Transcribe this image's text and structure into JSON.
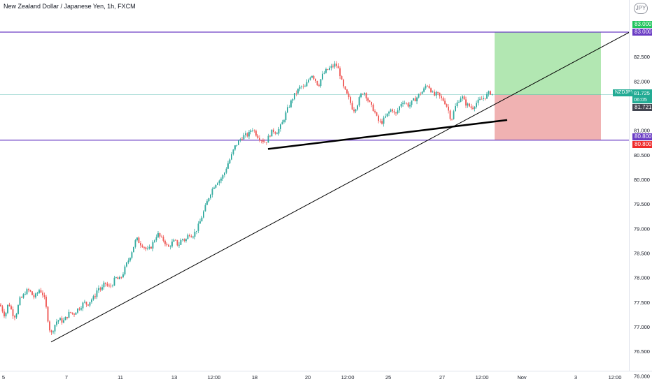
{
  "header": {
    "title": "New Zealand Dollar / Japanese Yen, 1h, FXCM",
    "currency": "JPY"
  },
  "badges": {
    "target_price": "83.000",
    "upper_line_price": "83.000",
    "stop_price": "80.800",
    "lower_line_price": "80.800",
    "symbol": "NZDJPY",
    "last_price": "81.725",
    "countdown": "06:05",
    "close_price": "81.721"
  },
  "colors": {
    "up": "#26a69a",
    "down": "#ef5350",
    "profit_zone": "#a5e3a5",
    "loss_zone": "#eeaaaa",
    "horizontal_line": "#6a3cc4",
    "trend_line": "#000000"
  },
  "chart_data": {
    "type": "candlestick",
    "instrument": "NZDJPY",
    "timeframe": "1h",
    "source": "FXCM",
    "ylim": [
      75.9,
      83.55
    ],
    "y_ticks": [
      "83.000",
      "82.500",
      "82.000",
      "81.500",
      "81.000",
      "80.500",
      "80.000",
      "79.500",
      "79.000",
      "78.500",
      "78.000",
      "77.500",
      "77.000",
      "76.500",
      "76.000"
    ],
    "x_ticks": [
      "5",
      "7",
      "11",
      "13",
      "12:00",
      "18",
      "20",
      "12:00",
      "25",
      "27",
      "12:00",
      "Nov",
      "3",
      "12:00"
    ],
    "price_path": [
      [
        0,
        77.45
      ],
      [
        3,
        77.35
      ],
      [
        6,
        77.25
      ],
      [
        9,
        77.3
      ],
      [
        12,
        77.5
      ],
      [
        16,
        77.35
      ],
      [
        20,
        77.2
      ],
      [
        24,
        77.3
      ],
      [
        28,
        77.55
      ],
      [
        32,
        77.6
      ],
      [
        36,
        77.7
      ],
      [
        40,
        77.75
      ],
      [
        44,
        77.7
      ],
      [
        48,
        77.6
      ],
      [
        52,
        77.65
      ],
      [
        56,
        77.75
      ],
      [
        60,
        77.7
      ],
      [
        64,
        77.55
      ],
      [
        67,
        77.3
      ],
      [
        70,
        77.0
      ],
      [
        73,
        76.85
      ],
      [
        76,
        76.95
      ],
      [
        80,
        77.1
      ],
      [
        85,
        77.15
      ],
      [
        90,
        77.1
      ],
      [
        95,
        77.2
      ],
      [
        100,
        77.3
      ],
      [
        105,
        77.25
      ],
      [
        110,
        77.35
      ],
      [
        115,
        77.4
      ],
      [
        120,
        77.5
      ],
      [
        125,
        77.45
      ],
      [
        130,
        77.55
      ],
      [
        135,
        77.6
      ],
      [
        140,
        77.8
      ],
      [
        145,
        77.75
      ],
      [
        150,
        77.9
      ],
      [
        155,
        77.8
      ],
      [
        160,
        77.85
      ],
      [
        165,
        78.0
      ],
      [
        170,
        77.95
      ],
      [
        175,
        78.05
      ],
      [
        180,
        78.25
      ],
      [
        185,
        78.4
      ],
      [
        190,
        78.6
      ],
      [
        195,
        78.8
      ],
      [
        200,
        78.7
      ],
      [
        205,
        78.65
      ],
      [
        210,
        78.55
      ],
      [
        215,
        78.6
      ],
      [
        220,
        78.75
      ],
      [
        225,
        78.9
      ],
      [
        230,
        78.8
      ],
      [
        235,
        78.75
      ],
      [
        240,
        78.6
      ],
      [
        245,
        78.7
      ],
      [
        250,
        78.75
      ],
      [
        255,
        78.65
      ],
      [
        260,
        78.8
      ],
      [
        265,
        78.75
      ],
      [
        270,
        78.9
      ],
      [
        275,
        78.85
      ],
      [
        280,
        78.95
      ],
      [
        285,
        79.1
      ],
      [
        290,
        79.3
      ],
      [
        295,
        79.5
      ],
      [
        300,
        79.7
      ],
      [
        305,
        79.85
      ],
      [
        310,
        79.95
      ],
      [
        315,
        80.0
      ],
      [
        320,
        80.1
      ],
      [
        325,
        80.3
      ],
      [
        330,
        80.45
      ],
      [
        335,
        80.65
      ],
      [
        340,
        80.75
      ],
      [
        345,
        80.85
      ],
      [
        350,
        80.9
      ],
      [
        355,
        80.9
      ],
      [
        360,
        81.05
      ],
      [
        365,
        80.95
      ],
      [
        370,
        80.85
      ],
      [
        375,
        80.8
      ],
      [
        380,
        80.75
      ],
      [
        385,
        80.9
      ],
      [
        390,
        81.0
      ],
      [
        395,
        80.95
      ],
      [
        400,
        81.05
      ],
      [
        405,
        81.2
      ],
      [
        410,
        81.4
      ],
      [
        415,
        81.55
      ],
      [
        420,
        81.7
      ],
      [
        425,
        81.8
      ],
      [
        430,
        81.9
      ],
      [
        435,
        81.85
      ],
      [
        440,
        82.0
      ],
      [
        445,
        82.15
      ],
      [
        450,
        82.05
      ],
      [
        455,
        81.9
      ],
      [
        460,
        82.1
      ],
      [
        465,
        82.2
      ],
      [
        470,
        82.25
      ],
      [
        475,
        82.3
      ],
      [
        480,
        82.35
      ],
      [
        485,
        82.2
      ],
      [
        490,
        81.9
      ],
      [
        495,
        81.75
      ],
      [
        500,
        81.6
      ],
      [
        505,
        81.4
      ],
      [
        510,
        81.5
      ],
      [
        515,
        81.7
      ],
      [
        520,
        81.8
      ],
      [
        525,
        81.65
      ],
      [
        530,
        81.5
      ],
      [
        535,
        81.4
      ],
      [
        540,
        81.2
      ],
      [
        545,
        81.15
      ],
      [
        550,
        81.25
      ],
      [
        555,
        81.35
      ],
      [
        560,
        81.45
      ],
      [
        565,
        81.3
      ],
      [
        570,
        81.45
      ],
      [
        575,
        81.6
      ],
      [
        580,
        81.55
      ],
      [
        585,
        81.5
      ],
      [
        590,
        81.6
      ],
      [
        595,
        81.65
      ],
      [
        600,
        81.75
      ],
      [
        605,
        81.8
      ],
      [
        610,
        81.95
      ],
      [
        615,
        81.85
      ],
      [
        620,
        81.7
      ],
      [
        625,
        81.75
      ],
      [
        630,
        81.65
      ],
      [
        635,
        81.6
      ],
      [
        640,
        81.45
      ],
      [
        645,
        81.2
      ],
      [
        650,
        81.45
      ],
      [
        655,
        81.6
      ],
      [
        660,
        81.7
      ],
      [
        665,
        81.55
      ],
      [
        670,
        81.5
      ],
      [
        675,
        81.45
      ],
      [
        680,
        81.55
      ],
      [
        685,
        81.6
      ],
      [
        690,
        81.65
      ],
      [
        695,
        81.7
      ],
      [
        700,
        81.78
      ],
      [
        705,
        81.72
      ]
    ],
    "horizontal_levels": [
      83.0,
      80.8
    ],
    "last_price": 81.725,
    "position": {
      "type": "long",
      "entry": 81.725,
      "target": 83.0,
      "stop": 80.8
    },
    "trend_lines": [
      {
        "from": [
          73,
          76.69
        ],
        "to": [
          900,
          83.0
        ],
        "width": 1
      },
      {
        "from": [
          383,
          80.62
        ],
        "to": [
          725,
          81.21
        ],
        "width": 2.5
      }
    ]
  }
}
